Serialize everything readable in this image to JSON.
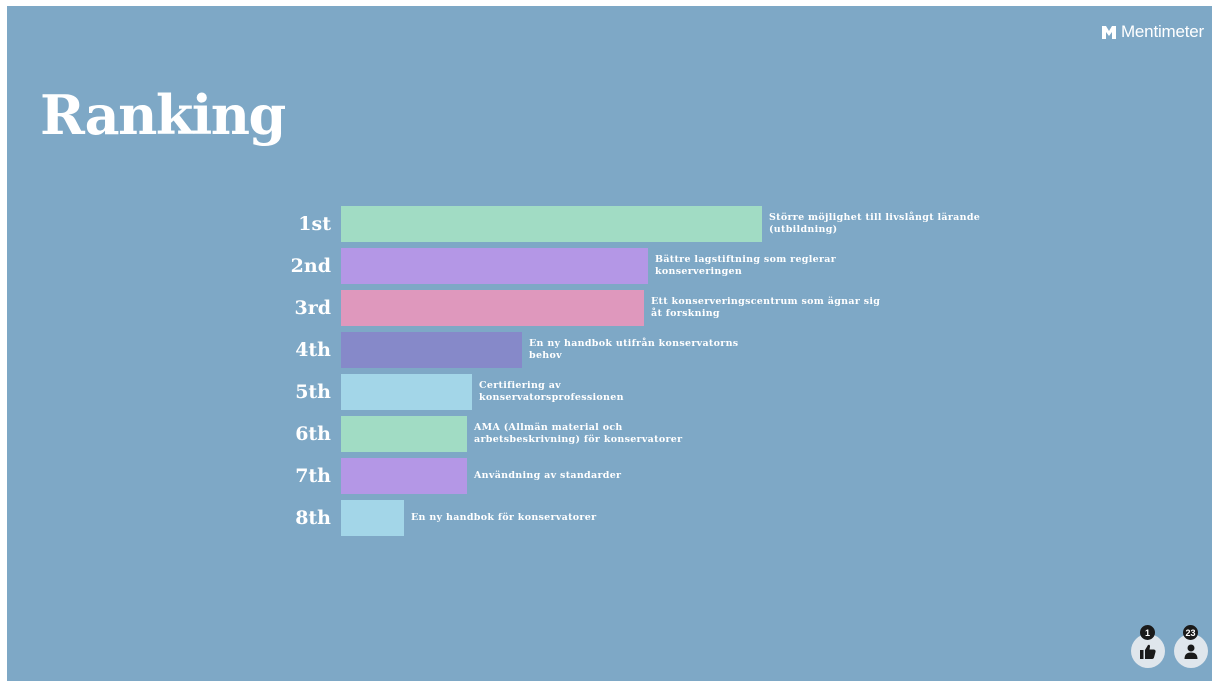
{
  "brand": {
    "name": "Mentimeter"
  },
  "title": "Ranking",
  "counters": {
    "reactions": "1",
    "participants": "23"
  },
  "icons": {
    "reactions": "thumbs-up-icon",
    "participants": "person-icon"
  },
  "colors": {
    "background": "#7ea8c6",
    "green": "#a1dcc4",
    "purple": "#b497e6",
    "pink": "#df98bd",
    "indigo": "#8689c9",
    "lightblue": "#a3d6e8"
  },
  "chart_data": {
    "type": "bar",
    "orientation": "horizontal",
    "categories": [
      "1st",
      "2nd",
      "3rd",
      "4th",
      "5th",
      "6th",
      "7th",
      "8th"
    ],
    "labels": [
      "Större möjlighet till livslångt lärande (utbildning)",
      "Bättre lagstiftning som reglerar konserveringen",
      "Ett konserveringscentrum som ägnar sig åt forskning",
      "En ny handbok utifrån konservatorns behov",
      "Certifiering av konservatorsprofessionen",
      "AMA (Allmän material och arbetsbeskrivning) för konservatorer",
      "Användning av standarder",
      "En ny handbok för konservatorer"
    ],
    "values": [
      100,
      73,
      72,
      43,
      31,
      30,
      30,
      15
    ],
    "colors": [
      "#a1dcc4",
      "#b497e6",
      "#df98bd",
      "#8689c9",
      "#a3d6e8",
      "#a1dcc4",
      "#b497e6",
      "#a3d6e8"
    ]
  }
}
